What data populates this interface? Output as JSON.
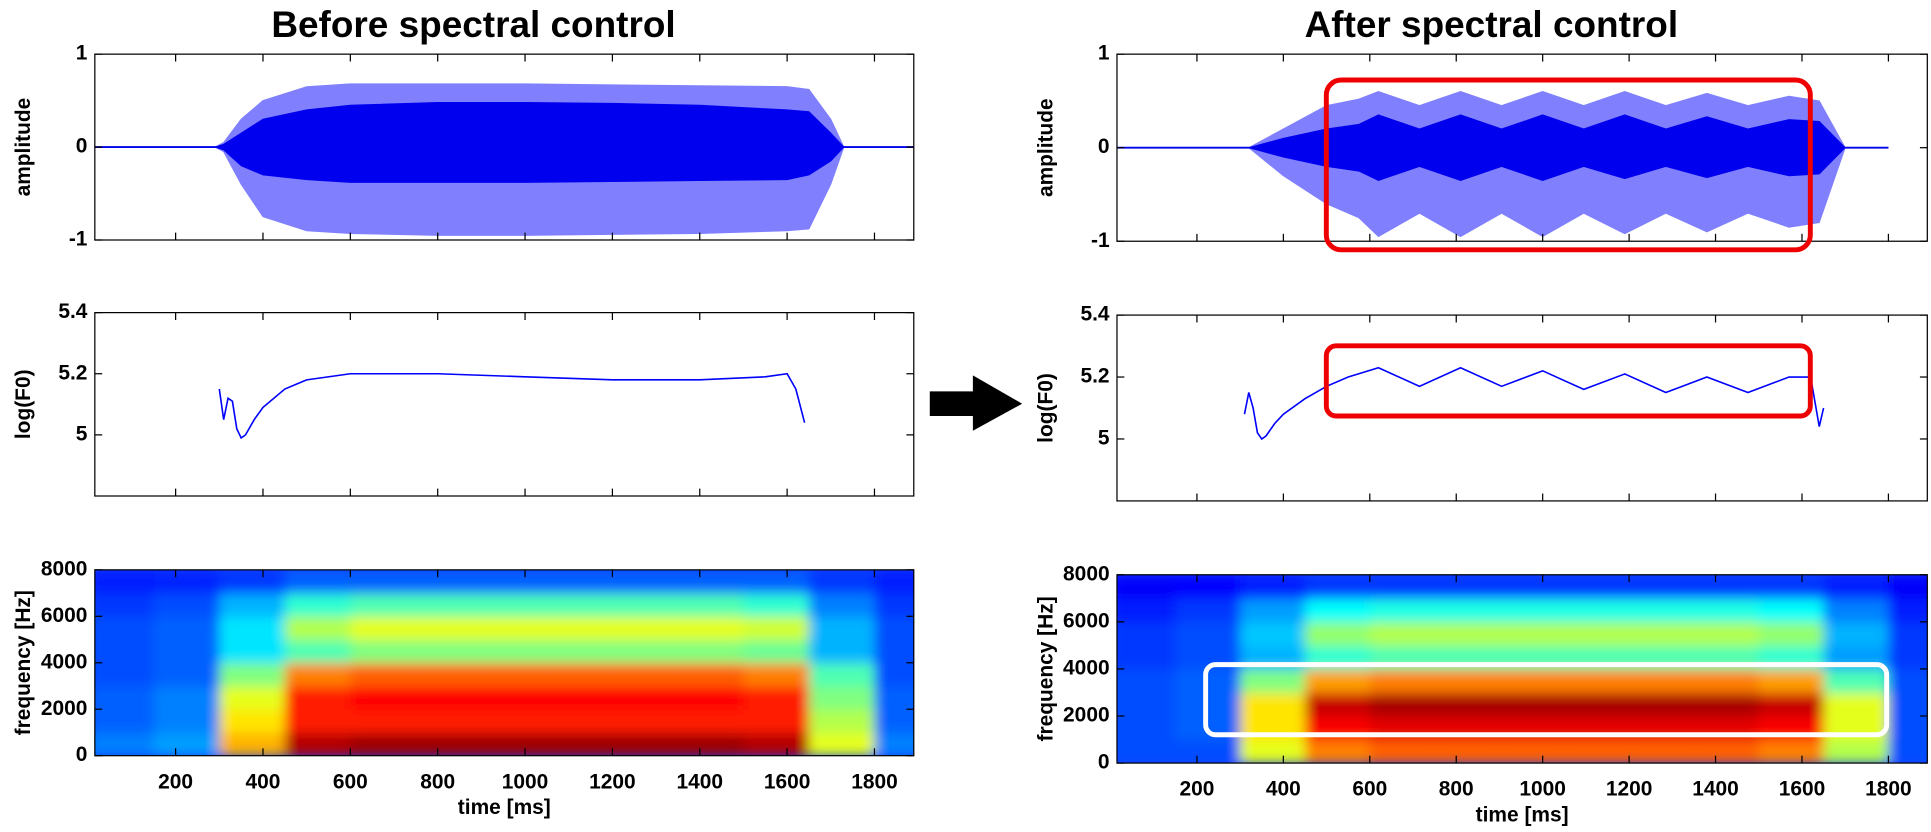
{
  "chart_data": [
    {
      "type": "waveform",
      "title": "Before spectral control",
      "ylabel": "amplitude",
      "xlim": [
        15,
        1890
      ],
      "ylim": [
        -1,
        1
      ],
      "yticks": [
        -1,
        0,
        1
      ],
      "xticks": [
        200,
        400,
        600,
        800,
        1000,
        1200,
        1400,
        1600,
        1800
      ],
      "xtick_labels": false,
      "x": [
        0,
        290,
        310,
        350,
        400,
        500,
        600,
        800,
        1000,
        1200,
        1400,
        1600,
        1650,
        1700,
        1730,
        1890
      ],
      "series": [
        {
          "color": "#8080ff",
          "upper": [
            0,
            0,
            0.05,
            0.3,
            0.5,
            0.65,
            0.68,
            0.68,
            0.68,
            0.67,
            0.66,
            0.65,
            0.62,
            0.3,
            0,
            0
          ],
          "lower": [
            0,
            0,
            -0.05,
            -0.4,
            -0.75,
            -0.9,
            -0.93,
            -0.95,
            -0.95,
            -0.94,
            -0.93,
            -0.9,
            -0.88,
            -0.4,
            0,
            0
          ]
        },
        {
          "color": "#0000ee",
          "upper": [
            0,
            0,
            0.03,
            0.15,
            0.3,
            0.4,
            0.45,
            0.48,
            0.48,
            0.47,
            0.45,
            0.4,
            0.38,
            0.15,
            0,
            0
          ],
          "lower": [
            0,
            0,
            -0.03,
            -0.2,
            -0.3,
            -0.35,
            -0.38,
            -0.38,
            -0.38,
            -0.37,
            -0.36,
            -0.35,
            -0.3,
            -0.15,
            0,
            0
          ]
        }
      ]
    },
    {
      "type": "line",
      "ylabel": "log(F0)",
      "color": "#0000ff",
      "xlim": [
        15,
        1890
      ],
      "ylim": [
        4.8,
        5.4
      ],
      "yticks": [
        5,
        5.2,
        5.4
      ],
      "xticks": [
        200,
        400,
        600,
        800,
        1000,
        1200,
        1400,
        1600,
        1800
      ],
      "xtick_labels": false,
      "x": [
        300,
        310,
        320,
        330,
        340,
        350,
        360,
        380,
        400,
        450,
        500,
        600,
        800,
        1000,
        1200,
        1400,
        1550,
        1600,
        1620,
        1640
      ],
      "values": [
        5.15,
        5.05,
        5.12,
        5.11,
        5.02,
        4.99,
        5.0,
        5.05,
        5.09,
        5.15,
        5.18,
        5.2,
        5.2,
        5.19,
        5.18,
        5.18,
        5.19,
        5.2,
        5.15,
        5.04
      ]
    },
    {
      "type": "heatmap",
      "ylabel": "frequency [Hz]",
      "xlabel": "time [ms]",
      "colormap": "jet",
      "xlim": [
        15,
        1890
      ],
      "ylim": [
        0,
        8000
      ],
      "yticks": [
        0,
        2000,
        4000,
        6000,
        8000
      ],
      "xticks": [
        200,
        400,
        600,
        800,
        1000,
        1200,
        1400,
        1600,
        1800
      ],
      "time_bins": [
        0,
        150,
        300,
        450,
        600,
        750,
        900,
        1050,
        1200,
        1350,
        1500,
        1650,
        1800,
        1950
      ],
      "freq_bins": [
        0,
        1000,
        2000,
        3000,
        4000,
        5000,
        6000,
        7000,
        8000
      ],
      "z": [
        [
          0.25,
          0.28,
          0.7,
          0.95,
          0.97,
          0.97,
          0.97,
          0.97,
          0.97,
          0.97,
          0.95,
          0.6,
          0.25
        ],
        [
          0.22,
          0.25,
          0.65,
          0.85,
          0.85,
          0.85,
          0.85,
          0.85,
          0.85,
          0.85,
          0.85,
          0.55,
          0.22
        ],
        [
          0.22,
          0.25,
          0.6,
          0.85,
          0.87,
          0.87,
          0.87,
          0.87,
          0.87,
          0.87,
          0.85,
          0.5,
          0.22
        ],
        [
          0.2,
          0.22,
          0.5,
          0.75,
          0.78,
          0.78,
          0.78,
          0.78,
          0.78,
          0.78,
          0.75,
          0.45,
          0.2
        ],
        [
          0.2,
          0.22,
          0.35,
          0.45,
          0.5,
          0.5,
          0.5,
          0.5,
          0.5,
          0.5,
          0.48,
          0.3,
          0.2
        ],
        [
          0.2,
          0.22,
          0.35,
          0.55,
          0.6,
          0.6,
          0.6,
          0.6,
          0.6,
          0.6,
          0.58,
          0.3,
          0.2
        ],
        [
          0.18,
          0.2,
          0.3,
          0.42,
          0.45,
          0.45,
          0.45,
          0.45,
          0.45,
          0.45,
          0.42,
          0.25,
          0.18
        ],
        [
          0.15,
          0.16,
          0.18,
          0.22,
          0.22,
          0.22,
          0.22,
          0.22,
          0.22,
          0.22,
          0.22,
          0.18,
          0.15
        ]
      ]
    },
    {
      "type": "waveform",
      "title": "After spectral control",
      "ylabel": "amplitude",
      "xlim": [
        15,
        1890
      ],
      "ylim": [
        -1,
        1
      ],
      "yticks": [
        -1,
        0,
        1
      ],
      "xticks": [
        200,
        400,
        600,
        800,
        1000,
        1200,
        1400,
        1600,
        1800
      ],
      "xtick_labels": false,
      "x": [
        0,
        320,
        400,
        500,
        575,
        620,
        715,
        810,
        905,
        1000,
        1095,
        1190,
        1285,
        1380,
        1475,
        1570,
        1640,
        1700,
        1800
      ],
      "series": [
        {
          "color": "#8080ff",
          "upper": [
            0,
            0,
            0.2,
            0.45,
            0.52,
            0.6,
            0.45,
            0.6,
            0.45,
            0.6,
            0.45,
            0.6,
            0.45,
            0.58,
            0.45,
            0.55,
            0.5,
            0,
            0
          ],
          "lower": [
            0,
            0,
            -0.3,
            -0.6,
            -0.75,
            -0.95,
            -0.7,
            -0.95,
            -0.7,
            -0.95,
            -0.7,
            -0.92,
            -0.7,
            -0.9,
            -0.7,
            -0.85,
            -0.8,
            0,
            0
          ]
        },
        {
          "color": "#0000ee",
          "upper": [
            0,
            0,
            0.1,
            0.2,
            0.25,
            0.35,
            0.2,
            0.35,
            0.2,
            0.35,
            0.2,
            0.35,
            0.2,
            0.33,
            0.2,
            0.3,
            0.28,
            0,
            0
          ],
          "lower": [
            0,
            0,
            -0.1,
            -0.2,
            -0.25,
            -0.35,
            -0.2,
            -0.35,
            -0.2,
            -0.35,
            -0.2,
            -0.33,
            -0.2,
            -0.32,
            -0.2,
            -0.3,
            -0.28,
            0,
            0
          ]
        }
      ]
    },
    {
      "type": "line",
      "ylabel": "log(F0)",
      "color": "#0000ff",
      "xlim": [
        15,
        1890
      ],
      "ylim": [
        4.8,
        5.4
      ],
      "yticks": [
        5,
        5.2,
        5.4
      ],
      "xticks": [
        200,
        400,
        600,
        800,
        1000,
        1200,
        1400,
        1600,
        1800
      ],
      "xtick_labels": false,
      "x": [
        310,
        320,
        330,
        340,
        350,
        360,
        380,
        400,
        450,
        500,
        550,
        620,
        715,
        810,
        905,
        1000,
        1095,
        1190,
        1285,
        1380,
        1475,
        1570,
        1620,
        1640,
        1650
      ],
      "values": [
        5.08,
        5.15,
        5.1,
        5.02,
        5.0,
        5.01,
        5.05,
        5.08,
        5.13,
        5.17,
        5.2,
        5.23,
        5.17,
        5.23,
        5.17,
        5.22,
        5.16,
        5.21,
        5.15,
        5.2,
        5.15,
        5.2,
        5.2,
        5.04,
        5.1
      ]
    },
    {
      "type": "heatmap",
      "ylabel": "frequency [Hz]",
      "xlabel": "time [ms]",
      "colormap": "jet",
      "xlim": [
        15,
        1890
      ],
      "ylim": [
        0,
        8000
      ],
      "yticks": [
        0,
        2000,
        4000,
        6000,
        8000
      ],
      "xticks": [
        200,
        400,
        600,
        800,
        1000,
        1200,
        1400,
        1600,
        1800
      ],
      "time_bins": [
        0,
        150,
        300,
        450,
        600,
        750,
        900,
        1050,
        1200,
        1350,
        1500,
        1650,
        1800,
        1950
      ],
      "freq_bins": [
        0,
        1000,
        2000,
        3000,
        4000,
        5000,
        6000,
        7000,
        8000
      ],
      "z": [
        [
          0.2,
          0.2,
          0.6,
          0.75,
          0.78,
          0.78,
          0.78,
          0.78,
          0.78,
          0.78,
          0.75,
          0.55,
          0.2
        ],
        [
          0.2,
          0.22,
          0.65,
          0.88,
          0.9,
          0.9,
          0.9,
          0.9,
          0.9,
          0.9,
          0.88,
          0.6,
          0.2
        ],
        [
          0.2,
          0.22,
          0.65,
          0.93,
          0.96,
          0.96,
          0.96,
          0.96,
          0.96,
          0.96,
          0.93,
          0.6,
          0.2
        ],
        [
          0.2,
          0.22,
          0.5,
          0.72,
          0.75,
          0.75,
          0.75,
          0.75,
          0.75,
          0.75,
          0.72,
          0.45,
          0.2
        ],
        [
          0.18,
          0.2,
          0.3,
          0.42,
          0.45,
          0.45,
          0.45,
          0.45,
          0.45,
          0.45,
          0.42,
          0.28,
          0.18
        ],
        [
          0.18,
          0.2,
          0.32,
          0.52,
          0.55,
          0.55,
          0.55,
          0.55,
          0.55,
          0.55,
          0.52,
          0.3,
          0.18
        ],
        [
          0.15,
          0.18,
          0.28,
          0.38,
          0.4,
          0.4,
          0.4,
          0.4,
          0.4,
          0.4,
          0.38,
          0.25,
          0.15
        ],
        [
          0.12,
          0.13,
          0.15,
          0.18,
          0.18,
          0.18,
          0.18,
          0.18,
          0.18,
          0.18,
          0.18,
          0.15,
          0.12
        ]
      ]
    }
  ]
}
